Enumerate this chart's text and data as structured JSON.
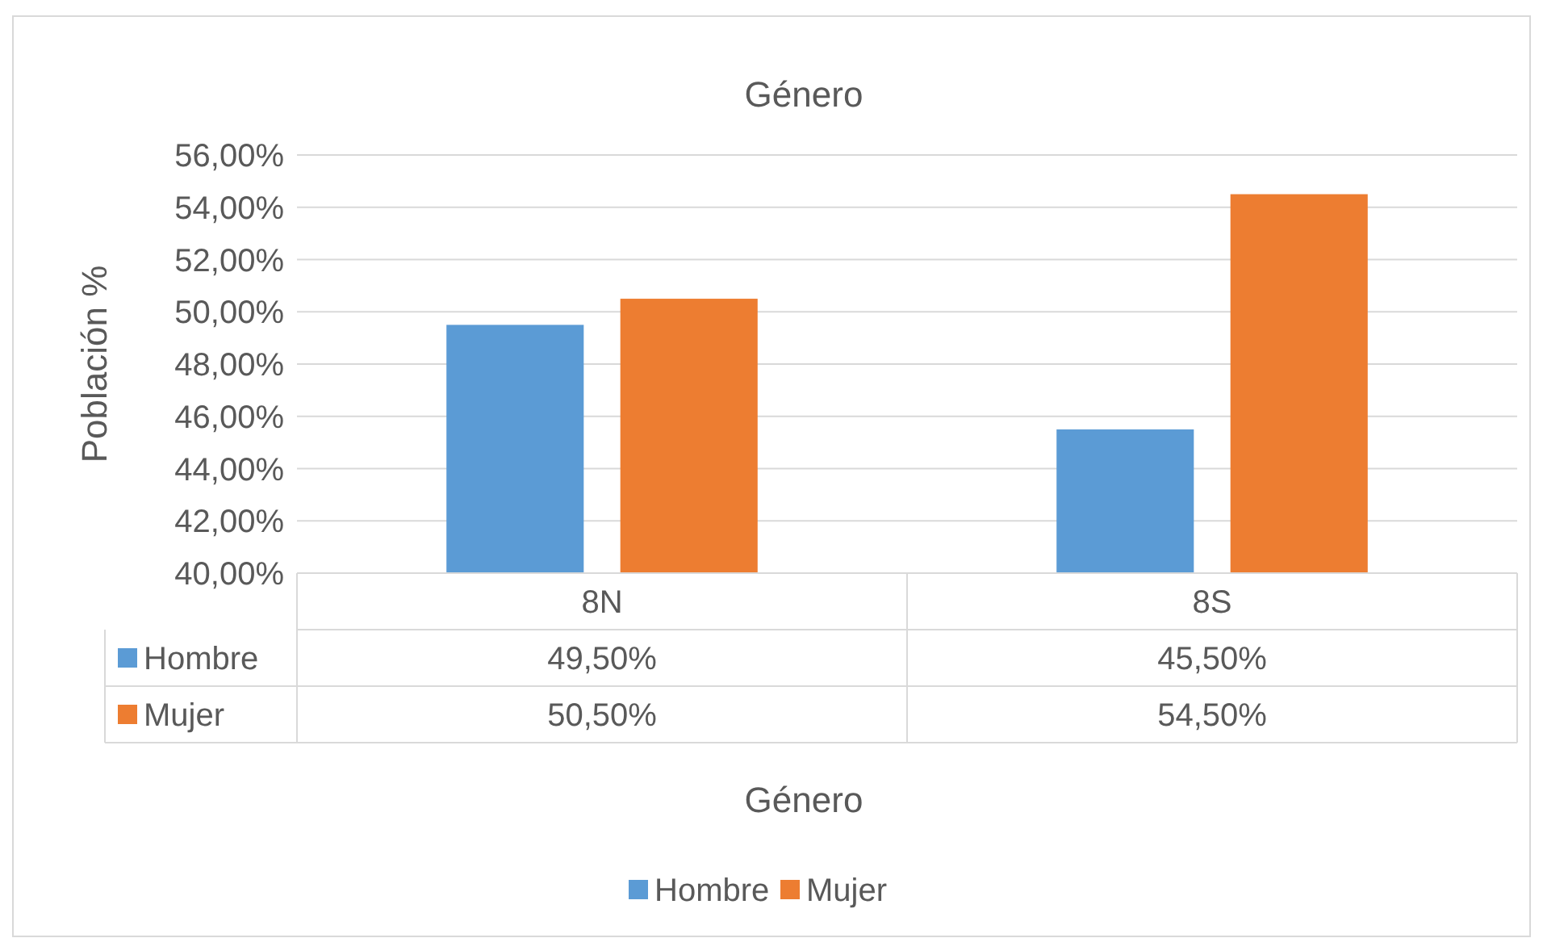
{
  "chart_data": {
    "type": "bar",
    "title": "Género",
    "xlabel": "Género",
    "ylabel": "Población %",
    "categories": [
      "8N",
      "8S"
    ],
    "series": [
      {
        "name": "Hombre",
        "color": "#5b9bd5",
        "values": [
          49.5,
          45.5
        ],
        "value_labels": [
          "49,50%",
          "45,50%"
        ]
      },
      {
        "name": "Mujer",
        "color": "#ed7d31",
        "values": [
          50.5,
          54.5
        ],
        "value_labels": [
          "50,50%",
          "54,50%"
        ]
      }
    ],
    "ylim": [
      40,
      56
    ],
    "yticks": [
      {
        "value": 40,
        "label": "40,00%"
      },
      {
        "value": 42,
        "label": "42,00%"
      },
      {
        "value": 44,
        "label": "44,00%"
      },
      {
        "value": 46,
        "label": "46,00%"
      },
      {
        "value": 48,
        "label": "48,00%"
      },
      {
        "value": 50,
        "label": "50,00%"
      },
      {
        "value": 52,
        "label": "52,00%"
      },
      {
        "value": 54,
        "label": "54,00%"
      },
      {
        "value": 56,
        "label": "56,00%"
      }
    ],
    "grid": "y",
    "legend": "bottom"
  }
}
